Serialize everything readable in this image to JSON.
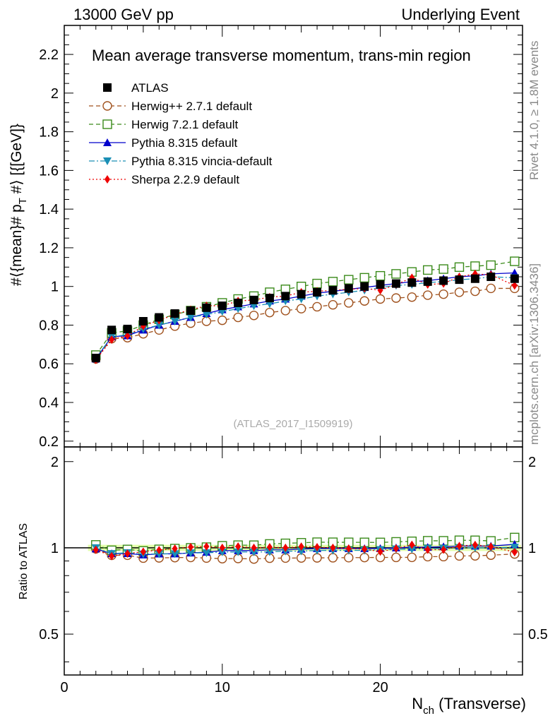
{
  "header": {
    "left": "13000 GeV pp",
    "right": "Underlying Event"
  },
  "side_labels": {
    "rivet": "Rivet 4.1.0, ≥ 1.8M events",
    "mcplots": "mcplots.cern.ch [arXiv:1306.3436]"
  },
  "colors": {
    "atlas": "#000000",
    "herwigpp": "#a0521e",
    "herwig7": "#3a8a1a",
    "pythia": "#0000cc",
    "vincia": "#1a8fb5",
    "sherpa": "#ee0000",
    "band": "#ccff66"
  },
  "chart_data": {
    "type": "scatter",
    "title": "Mean average transverse momentum, trans-min region",
    "watermark": "(ATLAS_2017_I1509919)",
    "xlabel": "N",
    "xlabel_sub": "ch",
    "xlabel_suffix": " (Transverse)",
    "ylabel": "#⟨{mean}# p",
    "ylabel_sub": "T",
    "ylabel_suffix": " #⟩ [{[GeV]}",
    "ratio_ylabel": "Ratio to ATLAS",
    "xlim": [
      0,
      29
    ],
    "ylim": [
      0.17,
      2.35
    ],
    "ratio_ylim": [
      0.36,
      2.25
    ],
    "x_ticks": [
      "0",
      "10",
      "20"
    ],
    "y_ticks": [
      "0.2",
      "0.4",
      "0.6",
      "0.8",
      "1",
      "1.2",
      "1.4",
      "1.6",
      "1.8",
      "2",
      "2.2"
    ],
    "ratio_ticks": [
      "0.5",
      "1",
      "2"
    ],
    "x": [
      2,
      3,
      4,
      5,
      6,
      7,
      8,
      9,
      10,
      11,
      12,
      13,
      14,
      15,
      16,
      17,
      18,
      19,
      20,
      21,
      22,
      23,
      24,
      25,
      26,
      27,
      28.5
    ],
    "series": [
      {
        "name": "ATLAS",
        "key": "atlas",
        "marker": "square-filled",
        "line": "none",
        "values": [
          0.63,
          0.775,
          0.78,
          0.82,
          0.84,
          0.86,
          0.875,
          0.89,
          0.9,
          0.915,
          0.93,
          0.94,
          0.95,
          0.96,
          0.97,
          0.98,
          0.99,
          1.0,
          1.01,
          1.015,
          1.02,
          1.025,
          1.03,
          1.035,
          1.04,
          1.05,
          1.04
        ]
      },
      {
        "name": "Herwig++ 2.7.1 default",
        "key": "herwigpp",
        "marker": "circle-open",
        "line": "dashed",
        "values": [
          0.625,
          0.73,
          0.735,
          0.755,
          0.775,
          0.795,
          0.81,
          0.82,
          0.825,
          0.84,
          0.85,
          0.865,
          0.875,
          0.885,
          0.895,
          0.905,
          0.915,
          0.925,
          0.935,
          0.94,
          0.945,
          0.955,
          0.96,
          0.97,
          0.975,
          0.99,
          0.99
        ]
      },
      {
        "name": "Herwig 7.2.1 default",
        "key": "herwig7",
        "marker": "square-open",
        "line": "dashed",
        "values": [
          0.645,
          0.76,
          0.77,
          0.8,
          0.83,
          0.855,
          0.875,
          0.895,
          0.915,
          0.935,
          0.95,
          0.97,
          0.985,
          1.0,
          1.015,
          1.025,
          1.035,
          1.045,
          1.055,
          1.065,
          1.075,
          1.085,
          1.09,
          1.1,
          1.105,
          1.11,
          1.13
        ]
      },
      {
        "name": "Pythia 8.315 default",
        "key": "pythia",
        "marker": "triangle-up",
        "line": "solid",
        "values": [
          0.625,
          0.74,
          0.745,
          0.775,
          0.8,
          0.82,
          0.84,
          0.86,
          0.88,
          0.895,
          0.91,
          0.925,
          0.935,
          0.95,
          0.965,
          0.975,
          0.985,
          0.995,
          1.005,
          1.015,
          1.025,
          1.03,
          1.04,
          1.05,
          1.055,
          1.065,
          1.07
        ]
      },
      {
        "name": "Pythia 8.315 vincia-default",
        "key": "vincia",
        "marker": "triangle-down",
        "line": "dashdot",
        "values": [
          0.63,
          0.74,
          0.75,
          0.78,
          0.8,
          0.82,
          0.84,
          0.855,
          0.87,
          0.885,
          0.9,
          0.91,
          0.925,
          0.935,
          0.95,
          0.96,
          0.97,
          0.98,
          0.995,
          1.005,
          1.01,
          1.02,
          1.025,
          1.035,
          1.04,
          1.05,
          1.045
        ]
      },
      {
        "name": "Sherpa 2.2.9 default",
        "key": "sherpa",
        "marker": "diamond",
        "line": "dotted",
        "values": [
          0.62,
          0.725,
          0.745,
          0.795,
          0.825,
          0.855,
          0.88,
          0.9,
          0.9,
          0.925,
          0.93,
          0.945,
          0.95,
          0.97,
          0.975,
          0.98,
          0.985,
          0.99,
          0.98,
          1.01,
          1.045,
          1.01,
          1.015,
          1.05,
          1.065,
          1.06,
          1.005
        ]
      }
    ]
  }
}
